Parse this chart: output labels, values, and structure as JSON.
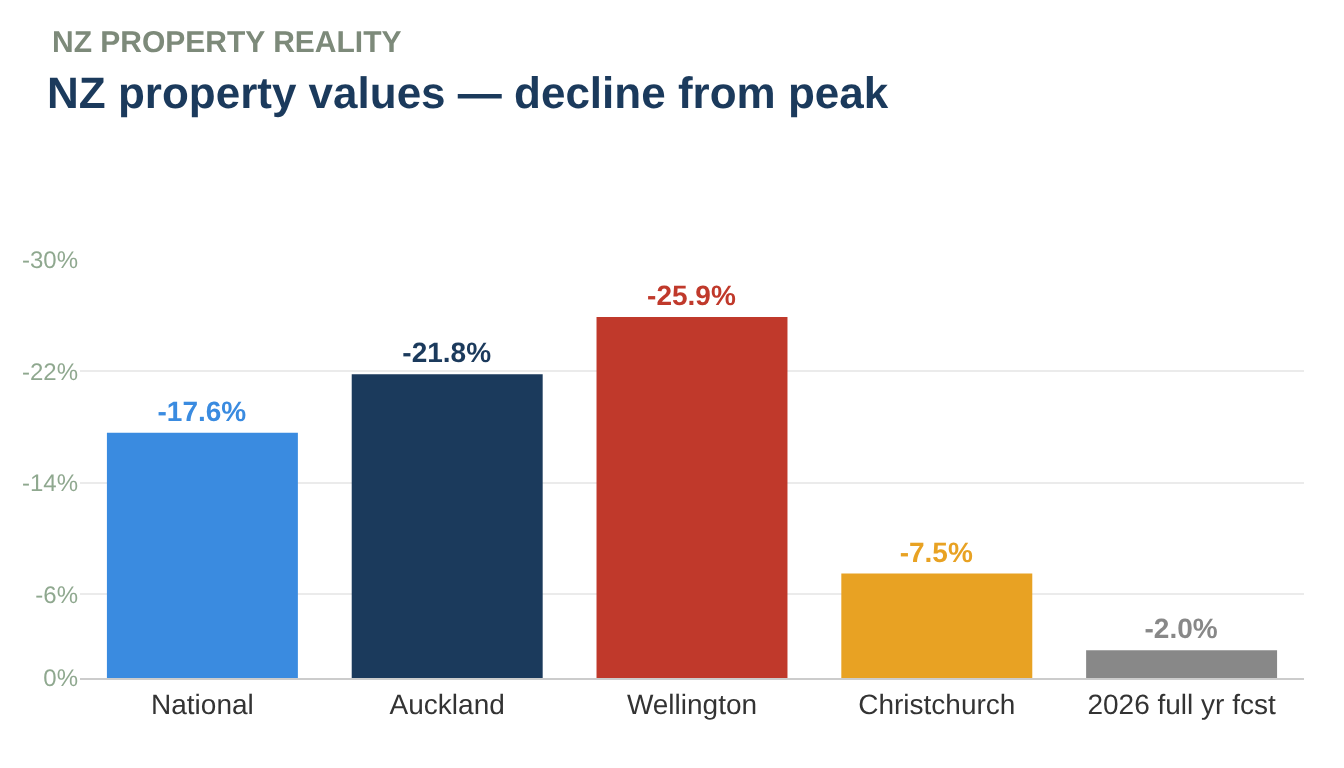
{
  "chart_data": {
    "type": "bar",
    "title": "NZ property values — decline from peak",
    "subtitle": "NZ PROPERTY REALITY",
    "categories": [
      "National",
      "Auckland",
      "Wellington",
      "Christchurch",
      "2026 full yr fcst"
    ],
    "values": [
      -17.6,
      -21.8,
      -25.9,
      -7.5,
      -2.0
    ],
    "colors": [
      "#3a8be0",
      "#1b3a5c",
      "#c0392b",
      "#e8a223",
      "#888888"
    ],
    "value_labels": [
      "-17.6%",
      "-21.8%",
      "-25.9%",
      "-7.5%",
      "-2.0%"
    ],
    "ylim": [
      0,
      -30
    ],
    "yticks": [
      {
        "value": -30,
        "label": "-30%"
      },
      {
        "value": -22,
        "label": "-22%"
      },
      {
        "value": -14,
        "label": "-14%"
      },
      {
        "value": -6,
        "label": "-6%"
      },
      {
        "value": 0,
        "label": "0%"
      }
    ],
    "grid": "y"
  }
}
